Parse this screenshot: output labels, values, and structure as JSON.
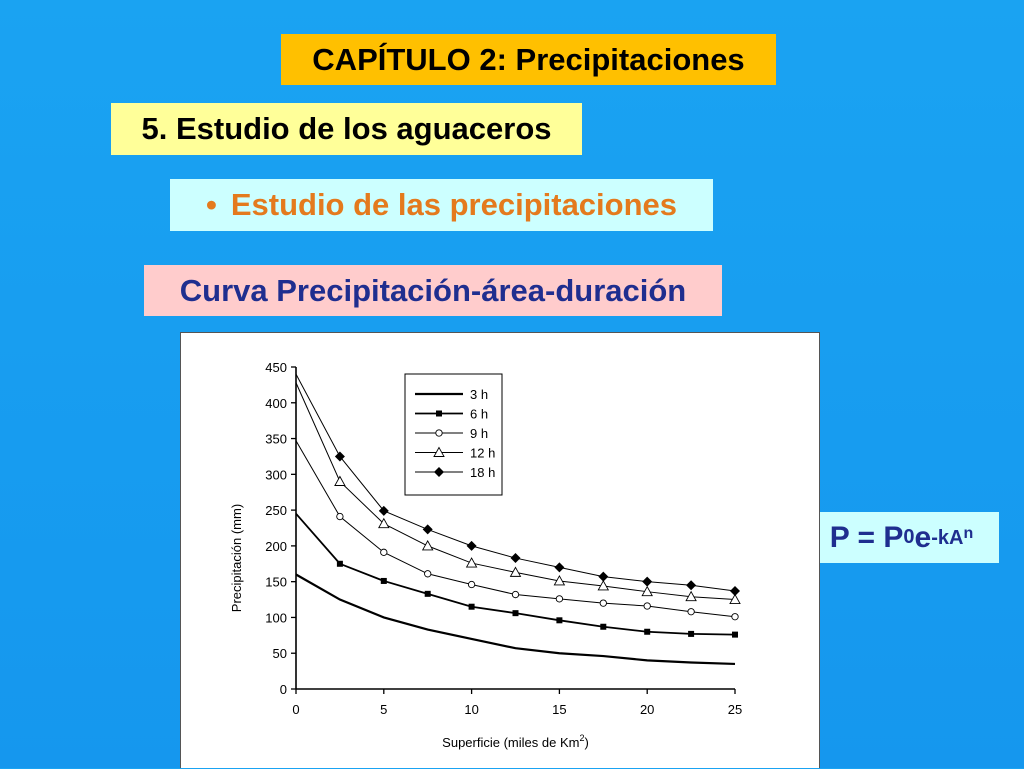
{
  "header": {
    "chapter": "CAPÍTULO 2: Precipitaciones",
    "section": "5. Estudio de los aguaceros",
    "topic_bullet": "•",
    "topic": "Estudio de las precipitaciones",
    "curve_title": "Curva Precipitación-área-duración"
  },
  "formula": {
    "lhs": "P = P",
    "sub": "0",
    "base": " e",
    "exp": "-kA",
    "exp_sup": "n"
  },
  "colors": {
    "background": "#1aa3f2",
    "chapter_box": "#ffc000",
    "section_box": "#ffff99",
    "topic_box": "#ccffff",
    "topic_text": "#e47a1d",
    "curve_title_box": "#ffcccc",
    "curve_title_text": "#1f2e8f"
  },
  "chart_data": {
    "type": "line",
    "title": "",
    "xlabel": "Superficie (miles de Km",
    "xlabel_sup": "2",
    "xlabel_close": ")",
    "ylabel": "Precipitación (mm)",
    "xlim": [
      0,
      25
    ],
    "ylim": [
      0,
      450
    ],
    "x_ticks": [
      0,
      5,
      10,
      15,
      20,
      25
    ],
    "y_ticks": [
      0,
      50,
      100,
      150,
      200,
      250,
      300,
      350,
      400,
      450
    ],
    "grid": false,
    "legend_position": "top-center",
    "x": [
      0,
      2.5,
      5,
      7.5,
      10,
      12.5,
      15,
      17.5,
      20,
      22.5,
      25
    ],
    "series": [
      {
        "name": "3 h",
        "marker": "none",
        "values": [
          160,
          125,
          100,
          83,
          70,
          57,
          50,
          46,
          40,
          37,
          35
        ]
      },
      {
        "name": "6 h",
        "marker": "square",
        "values": [
          245,
          175,
          151,
          133,
          115,
          106,
          96,
          87,
          80,
          77,
          76
        ]
      },
      {
        "name": "9 h",
        "marker": "circle",
        "values": [
          347,
          241,
          191,
          161,
          146,
          132,
          126,
          120,
          116,
          108,
          101
        ]
      },
      {
        "name": "12 h",
        "marker": "triangle",
        "values": [
          428,
          290,
          231,
          200,
          176,
          163,
          151,
          144,
          136,
          129,
          125
        ]
      },
      {
        "name": "18 h",
        "marker": "diamond",
        "values": [
          440,
          325,
          249,
          223,
          200,
          183,
          170,
          157,
          150,
          145,
          137
        ]
      }
    ]
  }
}
